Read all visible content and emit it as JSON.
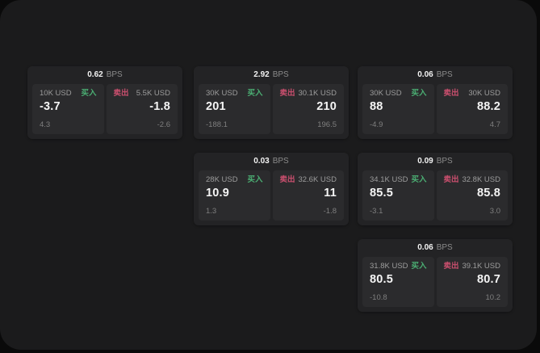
{
  "labels": {
    "bps_unit": "BPS",
    "buy": "买入",
    "sell": "卖出"
  },
  "colors": {
    "buy_green": "#4bae73",
    "sell_red": "#ca4f6e",
    "value_white": "#f5f5f5",
    "muted_gray": "#9c9c9c"
  },
  "cards": [
    {
      "bps": "0.62",
      "col": 0,
      "row": 0,
      "buy": {
        "amount": "10K USD",
        "price": "-3.7",
        "delta": "4.3"
      },
      "sell": {
        "amount": "5.5K USD",
        "price": "-1.8",
        "delta": "-2.6"
      }
    },
    {
      "bps": "2.92",
      "col": 1,
      "row": 0,
      "buy": {
        "amount": "30K USD",
        "price": "201",
        "delta": "-188.1"
      },
      "sell": {
        "amount": "30.1K USD",
        "price": "210",
        "delta": "196.5"
      }
    },
    {
      "bps": "0.06",
      "col": 2,
      "row": 0,
      "buy": {
        "amount": "30K USD",
        "price": "88",
        "delta": "-4.9"
      },
      "sell": {
        "amount": "30K USD",
        "price": "88.2",
        "delta": "4.7"
      }
    },
    {
      "bps": "0.03",
      "col": 1,
      "row": 1,
      "buy": {
        "amount": "28K USD",
        "price": "10.9",
        "delta": "1.3"
      },
      "sell": {
        "amount": "32.6K USD",
        "price": "11",
        "delta": "-1.8"
      }
    },
    {
      "bps": "0.09",
      "col": 2,
      "row": 1,
      "buy": {
        "amount": "34.1K USD",
        "price": "85.5",
        "delta": "-3.1"
      },
      "sell": {
        "amount": "32.8K USD",
        "price": "85.8",
        "delta": "3.0"
      }
    },
    {
      "bps": "0.06",
      "col": 2,
      "row": 2,
      "buy": {
        "amount": "31.8K USD",
        "price": "80.5",
        "delta": "-10.8"
      },
      "sell": {
        "amount": "39.1K USD",
        "price": "80.7",
        "delta": "10.2"
      }
    }
  ]
}
